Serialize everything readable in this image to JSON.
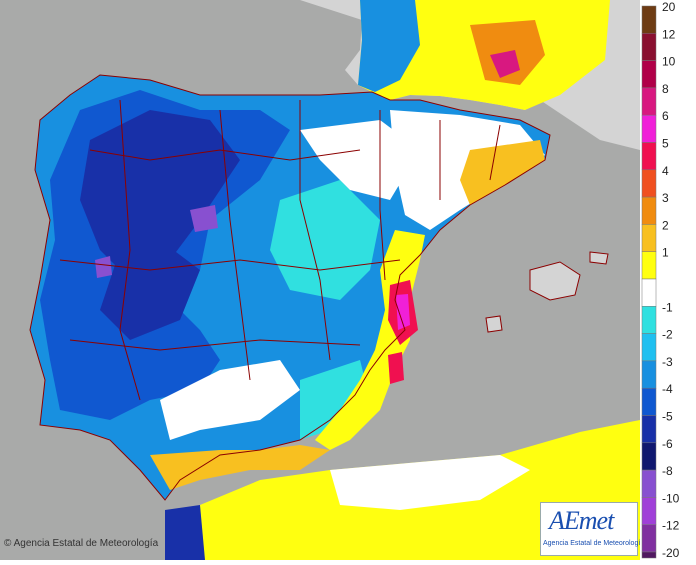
{
  "map": {
    "colors": {
      "sea": "#a9aaa9",
      "land_gray": "#d4d4d4",
      "white": "#ffffff"
    }
  },
  "copyright": "© Agencia Estatal de Meteorología",
  "logo": {
    "text": "AEmet",
    "subtitle": "Agencia Estatal de Meteorología"
  },
  "legend": {
    "items": [
      {
        "label": "20",
        "color": "#6e3c14"
      },
      {
        "label": "12",
        "color": "#8a1030"
      },
      {
        "label": "10",
        "color": "#b00048"
      },
      {
        "label": "8",
        "color": "#d81880"
      },
      {
        "label": "6",
        "color": "#f020d8"
      },
      {
        "label": "5",
        "color": "#f01050"
      },
      {
        "label": "4",
        "color": "#f05020"
      },
      {
        "label": "3",
        "color": "#f08c10"
      },
      {
        "label": "2",
        "color": "#f8c020"
      },
      {
        "label": "1",
        "color": "#ffff10"
      },
      {
        "label": "",
        "color": "#ffffff"
      },
      {
        "label": "-1",
        "color": "#30e0e0"
      },
      {
        "label": "-2",
        "color": "#20c0f0"
      },
      {
        "label": "-3",
        "color": "#1890e0"
      },
      {
        "label": "-4",
        "color": "#1058d0"
      },
      {
        "label": "-5",
        "color": "#1830a8"
      },
      {
        "label": "-6",
        "color": "#101870"
      },
      {
        "label": "-8",
        "color": "#8850d0"
      },
      {
        "label": "-10",
        "color": "#a040d8"
      },
      {
        "label": "-12",
        "color": "#8030a0"
      },
      {
        "label": "-20",
        "color": "#501860"
      }
    ]
  }
}
